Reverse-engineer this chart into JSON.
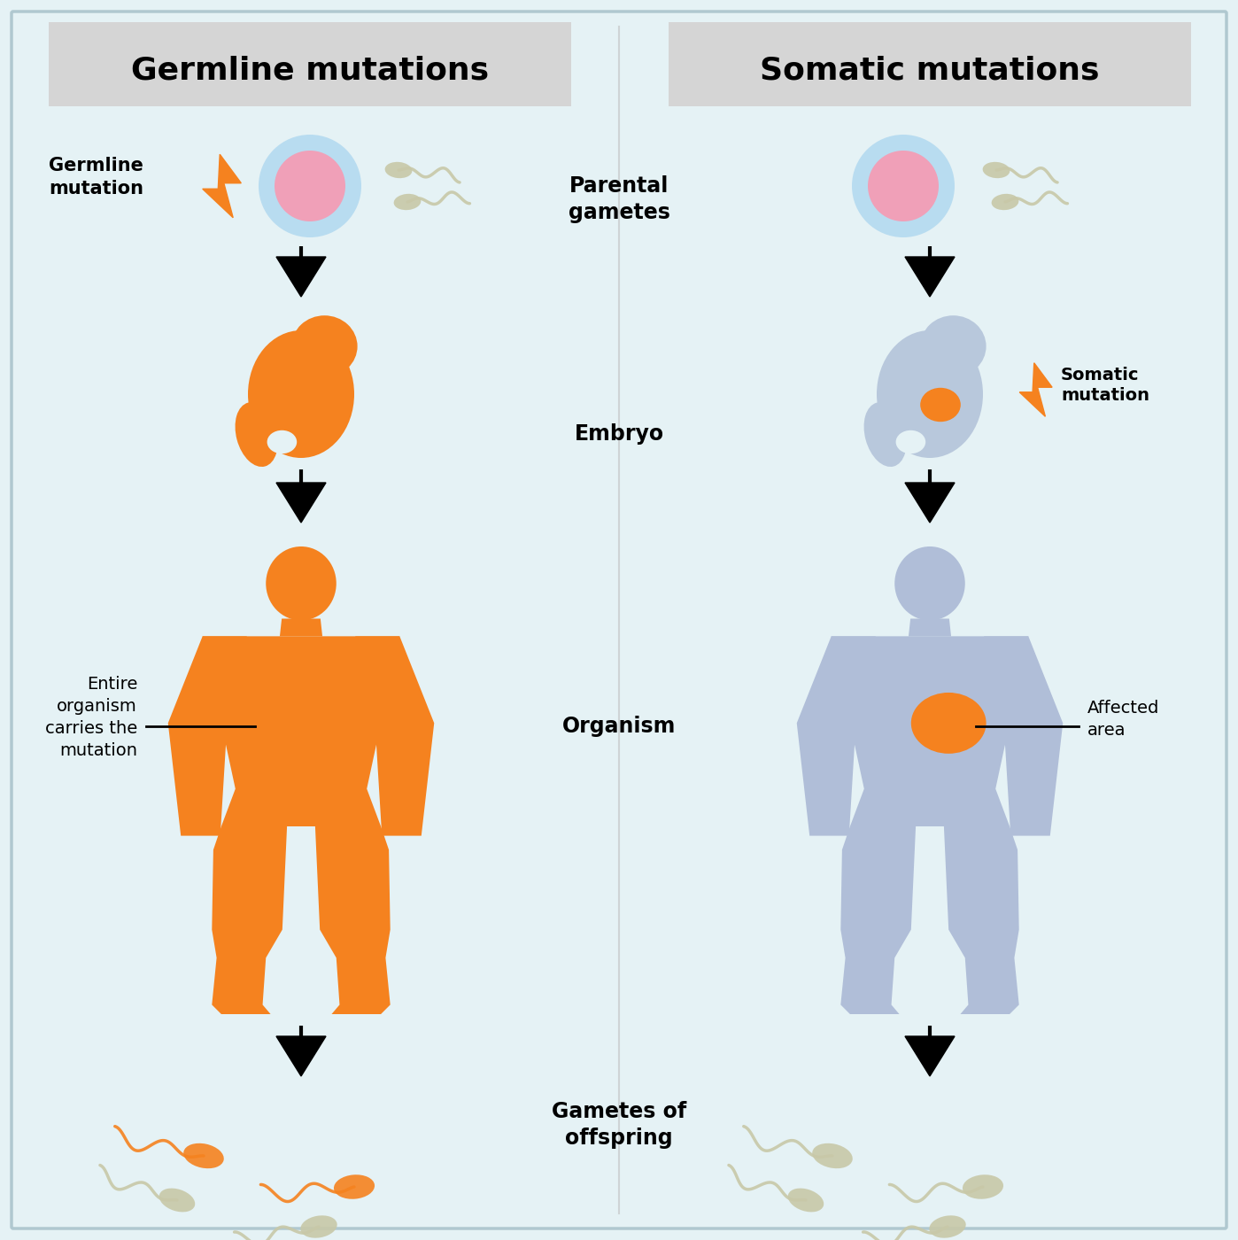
{
  "bg_color": "#e5f2f5",
  "panel_bg": "#d5d5d5",
  "orange": "#F5821F",
  "blue_person": "#B0BED8",
  "blue_embryo": "#B8C8DC",
  "pink": "#F0A0B8",
  "light_blue_egg": "#B8DCF0",
  "sperm_orange": "#F5821F",
  "sperm_gray": "#C8C8A8",
  "title_left": "Germline mutations",
  "title_right": "Somatic mutations",
  "label_parental": "Parental\ngametes",
  "label_embryo": "Embryo",
  "label_organism": "Organism",
  "label_gametes": "Gametes of\noffspring",
  "label_germline_mut": "Germline\nmutation",
  "label_somatic_mut": "Somatic\nmutation",
  "label_entire": "Entire\norganism\ncarries the\nmutation",
  "label_affected": "Affected\narea",
  "divider_color": "#c0c0c0"
}
